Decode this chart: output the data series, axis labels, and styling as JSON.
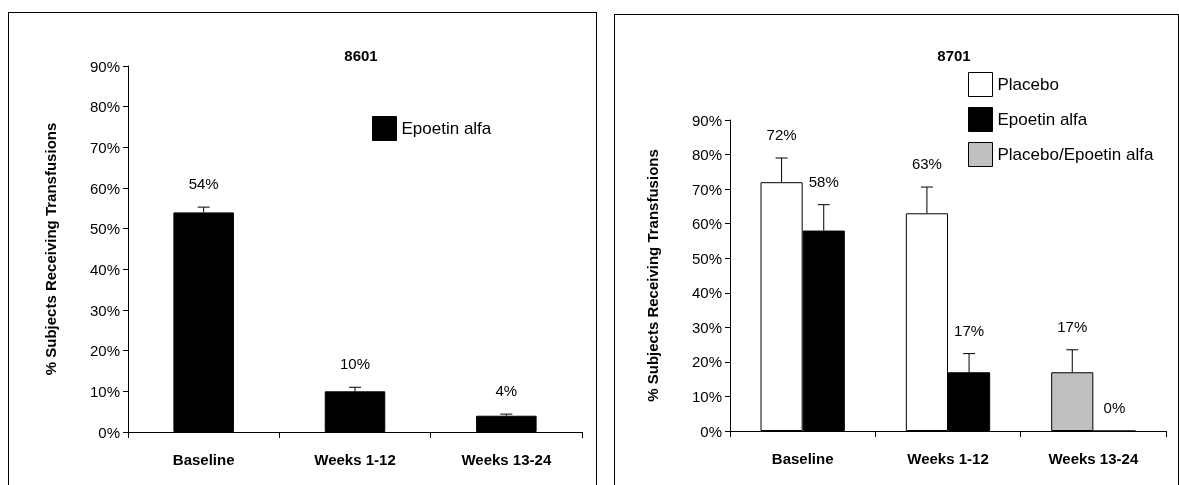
{
  "chart_data": [
    {
      "type": "bar",
      "title": "8601",
      "ylabel": "% Subjects Receiving Transfusions",
      "categories": [
        "Baseline",
        "Weeks 1-12",
        "Weeks 13-24"
      ],
      "series": [
        {
          "name": "Epoetin alfa",
          "color": "#000000",
          "values": [
            54,
            10,
            4
          ],
          "errors": [
            [
              54,
              55.3
            ],
            [
              10,
              11
            ],
            [
              4,
              4.4
            ]
          ],
          "value_labels": [
            "54%",
            "10%",
            "4%"
          ]
        }
      ],
      "ylim": [
        0,
        90
      ],
      "yticks": [
        {
          "value": 0,
          "label": "0%"
        },
        {
          "value": 10,
          "label": "10%"
        },
        {
          "value": 20,
          "label": "20%"
        },
        {
          "value": 30,
          "label": "30%"
        },
        {
          "value": 40,
          "label": "40%"
        },
        {
          "value": 50,
          "label": "50%"
        },
        {
          "value": 60,
          "label": "60%"
        },
        {
          "value": 70,
          "label": "70%"
        },
        {
          "value": 80,
          "label": "80%"
        },
        {
          "value": 90,
          "label": "90%"
        }
      ],
      "grid": false,
      "legend": "top right"
    },
    {
      "type": "bar",
      "title": "8701",
      "ylabel": "% Subjects Receiving Transfusions",
      "categories": [
        "Baseline",
        "Weeks 1-12",
        "Weeks 13-24"
      ],
      "series": [
        {
          "name": "Placebo",
          "color": "#ffffff",
          "values": [
            72,
            63,
            null
          ],
          "errors": [
            [
              72,
              79
            ],
            [
              63,
              70.6
            ],
            null
          ],
          "value_labels": [
            "72%",
            "63%",
            null
          ]
        },
        {
          "name": "Epoetin alfa",
          "color": "#000000",
          "values": [
            58,
            17,
            0
          ],
          "errors": [
            [
              58,
              65.5
            ],
            [
              17,
              22.4
            ],
            null
          ],
          "value_labels": [
            "58%",
            "17%",
            "0%"
          ]
        },
        {
          "name": "Placebo/Epoetin alfa",
          "color": "#c0c0c0",
          "values": [
            null,
            null,
            17
          ],
          "errors": [
            null,
            null,
            [
              17,
              23.5
            ]
          ],
          "value_labels": [
            null,
            null,
            "17%"
          ]
        }
      ],
      "ylim": [
        0,
        90
      ],
      "yticks": [
        {
          "value": 0,
          "label": "0%"
        },
        {
          "value": 10,
          "label": "10%"
        },
        {
          "value": 20,
          "label": "20%"
        },
        {
          "value": 30,
          "label": "30%"
        },
        {
          "value": 40,
          "label": "40%"
        },
        {
          "value": 50,
          "label": "50%"
        },
        {
          "value": 60,
          "label": "60%"
        },
        {
          "value": 70,
          "label": "70%"
        },
        {
          "value": 80,
          "label": "80%"
        },
        {
          "value": 90,
          "label": "90%"
        }
      ],
      "grid": false,
      "legend": "top right"
    }
  ]
}
